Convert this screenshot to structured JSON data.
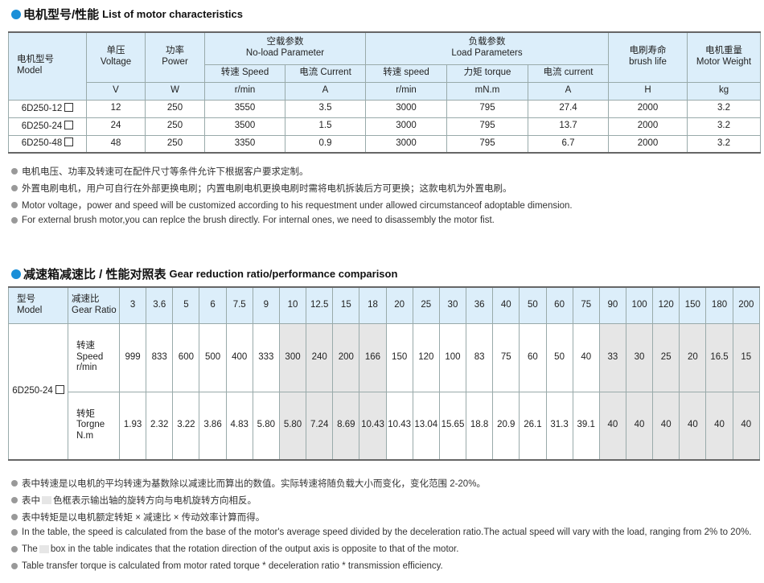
{
  "section1": {
    "title_cn": "电机型号/性能",
    "title_en": "List of motor characteristics",
    "headers": {
      "model": [
        "电机型号",
        "Model"
      ],
      "voltage": [
        "单压",
        "Voltage"
      ],
      "power": [
        "功率",
        "Power"
      ],
      "noload": [
        "空载参数",
        "No-load Parameter"
      ],
      "load": [
        "负载参数",
        "Load Parameters"
      ],
      "brush": [
        "电刷寿命",
        "brush life"
      ],
      "weight": [
        "电机重量",
        "Motor Weight"
      ],
      "sub": [
        "转速 Speed",
        "电流 Current",
        "转速 speed",
        "力矩 torque",
        "电流 current"
      ],
      "units": [
        "V",
        "W",
        "r/min",
        "A",
        "r/min",
        "mN.m",
        "A",
        "H",
        "kg"
      ]
    },
    "rows": [
      [
        "6D250-12",
        "12",
        "250",
        "3550",
        "3.5",
        "3000",
        "795",
        "27.4",
        "2000",
        "3.2"
      ],
      [
        "6D250-24",
        "24",
        "250",
        "3500",
        "1.5",
        "3000",
        "795",
        "13.7",
        "2000",
        "3.2"
      ],
      [
        "6D250-48",
        "48",
        "250",
        "3350",
        "0.9",
        "3000",
        "795",
        "6.7",
        "2000",
        "3.2"
      ]
    ],
    "notes": [
      "电机电压、功率及转速可在配件尺寸等条件允许下根据客户要求定制。",
      "外置电刷电机，用户可自行在外部更换电刷；内置电刷电机更换电刷时需将电机拆装后方可更换；这款电机为外置电刷。",
      "Motor voltage，power and speed will be customized according to his requestment under allowed circumstanceof adoptable dimension.",
      "For external brush motor,you can replce the brush directly. For internal ones, we need to disassembly the motor fist."
    ]
  },
  "section2": {
    "title_cn": "减速箱减速比 / 性能对照表",
    "title_en": "Gear reduction ratio/performance comparison",
    "model_header": [
      "型号",
      "Model"
    ],
    "ratio_header": [
      "减速比",
      "Gear Ratio"
    ],
    "model": "6D250-24",
    "speed_label": [
      "转速",
      "Speed",
      "r/min"
    ],
    "torque_label": [
      "转矩",
      "Torgne",
      "N.m"
    ],
    "ratios": [
      "3",
      "3.6",
      "5",
      "6",
      "7.5",
      "9",
      "10",
      "12.5",
      "15",
      "18",
      "20",
      "25",
      "30",
      "36",
      "40",
      "50",
      "60",
      "75",
      "90",
      "100",
      "120",
      "150",
      "180",
      "200"
    ],
    "speed": [
      "999",
      "833",
      "600",
      "500",
      "400",
      "333",
      "300",
      "240",
      "200",
      "166",
      "150",
      "120",
      "100",
      "83",
      "75",
      "60",
      "50",
      "40",
      "33",
      "30",
      "25",
      "20",
      "16.5",
      "15"
    ],
    "torque": [
      "1.93",
      "2.32",
      "3.22",
      "3.86",
      "4.83",
      "5.80",
      "5.80",
      "7.24",
      "8.69",
      "10.43",
      "10.43",
      "13.04",
      "15.65",
      "18.8",
      "20.9",
      "26.1",
      "31.3",
      "39.1",
      "40",
      "40",
      "40",
      "40",
      "40",
      "40"
    ],
    "shaded_ratios": [
      "10",
      "12.5",
      "15",
      "18",
      "90",
      "100",
      "120",
      "150",
      "180",
      "200"
    ],
    "notes": [
      "表中转速是以电机的平均转速为基数除以减速比而算出的数值。实际转速将随负载大小而变化，变化范围 2-20%。"
    ],
    "note2_parts": [
      "表中",
      "色框表示输出轴的旋转方向与电机旋转方向相反。"
    ],
    "note3": "表中转矩是以电机额定转矩 × 减速比 × 传动效率计算而得。",
    "note4": "In the table, the speed is calculated from the base of the motor's average speed  divided by the deceleration ratio.The actual speed will vary with the load, ranging from 2% to 20%.",
    "note5_parts": [
      "The",
      "box in the table indicates that the rotation direction of the output axis is opposite to that of the motor."
    ],
    "note6": "Table transfer torque is calculated from motor rated torque * deceleration ratio * transmission efficiency."
  },
  "colors": {
    "accent": "#1a8fd8",
    "header_bg": "#dceefa",
    "shade": "#e6e6e6"
  }
}
